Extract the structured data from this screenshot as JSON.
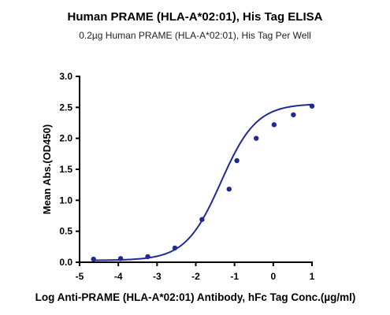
{
  "chart_data": {
    "type": "scatter",
    "title": "Human PRAME (HLA-A*02:01), His Tag ELISA",
    "subtitle": "0.2µg Human PRAME (HLA-A*02:01), His Tag Per Well",
    "xlabel": "Log Anti-PRAME (HLA-A*02:01) Antibody, hFc Tag Conc.(µg/ml)",
    "ylabel": "Mean Abs.(OD450)",
    "xlim": [
      -5,
      1
    ],
    "ylim": [
      0,
      3.0
    ],
    "xticks": [
      "-5",
      "-4",
      "-3",
      "-2",
      "-1",
      "0",
      "1"
    ],
    "yticks": [
      "0.0",
      "0.5",
      "1.0",
      "1.5",
      "2.0",
      "2.5",
      "3.0"
    ],
    "grid": false,
    "legend": "none",
    "colors": {
      "series": "#1f2a96",
      "axis": "#000000"
    },
    "series": [
      {
        "points": [
          {
            "x": -4.64,
            "y": 0.05
          },
          {
            "x": -3.94,
            "y": 0.06
          },
          {
            "x": -3.24,
            "y": 0.09
          },
          {
            "x": -2.54,
            "y": 0.23
          },
          {
            "x": -1.84,
            "y": 0.69
          },
          {
            "x": -1.14,
            "y": 1.18
          },
          {
            "x": -0.94,
            "y": 1.64
          },
          {
            "x": -0.44,
            "y": 2.0
          },
          {
            "x": 0.02,
            "y": 2.22
          },
          {
            "x": 0.52,
            "y": 2.38
          },
          {
            "x": 1.0,
            "y": 2.52
          }
        ],
        "fit": {
          "model": "4PL",
          "bottom": 0.03,
          "top": 2.56,
          "logEC50": -1.35,
          "hillslope": 0.95,
          "x_range": [
            -4.64,
            1.0
          ]
        }
      }
    ]
  }
}
